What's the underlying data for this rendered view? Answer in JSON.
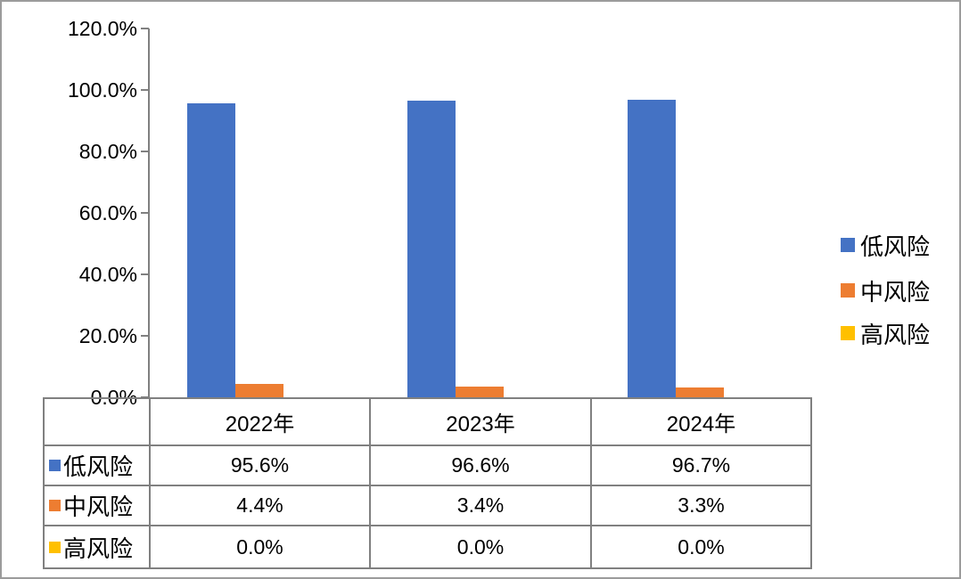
{
  "chart_data": {
    "type": "bar",
    "title": "",
    "categories": [
      "2022年",
      "2023年",
      "2024年"
    ],
    "series": [
      {
        "name": "低风险",
        "color": "#4472C4",
        "values": [
          95.6,
          96.6,
          96.7
        ],
        "labels": [
          "95.6%",
          "96.6%",
          "96.7%"
        ]
      },
      {
        "name": "中风险",
        "color": "#ED7D31",
        "values": [
          4.4,
          3.4,
          3.3
        ],
        "labels": [
          "4.4%",
          "3.4%",
          "3.3%"
        ]
      },
      {
        "name": "高风险",
        "color": "#FFC000",
        "values": [
          0.0,
          0.0,
          0.0
        ],
        "labels": [
          "0.0%",
          "0.0%",
          "0.0%"
        ]
      }
    ],
    "y_axis": {
      "min": 0,
      "max": 120,
      "step": 20,
      "unit": "%",
      "ticks": [
        "120.0%",
        "100.0%",
        "80.0%",
        "60.0%",
        "40.0%",
        "20.0%",
        "0.0%"
      ]
    },
    "legend": {
      "position": "right",
      "entries": [
        "低风险",
        "中风险",
        "高风险"
      ]
    },
    "grid": false,
    "data_table_shown": true,
    "colors": {
      "low_risk": "#4472C4",
      "mid_risk": "#ED7D31",
      "high_risk": "#FFC000",
      "axis_line": "#808080",
      "figure_border": "#9B9B9B"
    }
  }
}
